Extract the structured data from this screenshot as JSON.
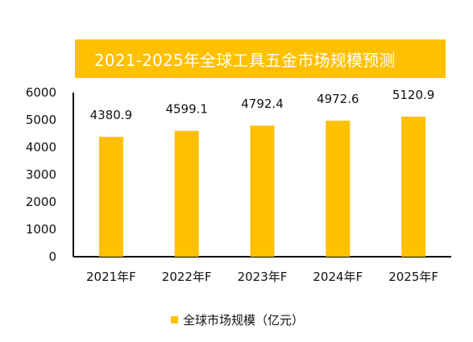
{
  "chart_data": {
    "type": "bar",
    "title": "2021-2025年全球工具五金市场规模预测",
    "categories": [
      "2021年F",
      "2022年F",
      "2023年F",
      "2024年F",
      "2025年F"
    ],
    "series": [
      {
        "name": "全球市场规模（亿元）",
        "values": [
          4380.9,
          4599.1,
          4792.4,
          4972.6,
          5120.9
        ],
        "data_labels": [
          "4380.9",
          "4599.1",
          "4792.4",
          "4972.6",
          "5120.9"
        ]
      }
    ],
    "yticks": [
      0,
      1000,
      2000,
      3000,
      4000,
      5000,
      6000
    ],
    "ylim": [
      0,
      6000
    ],
    "grid": false,
    "legend_position": "bottom"
  },
  "colors": {
    "bar": "#FFC000",
    "banner": "#FFC000",
    "banner_text": "#FFFFFF",
    "axis": "#000000",
    "text": "#111111"
  }
}
